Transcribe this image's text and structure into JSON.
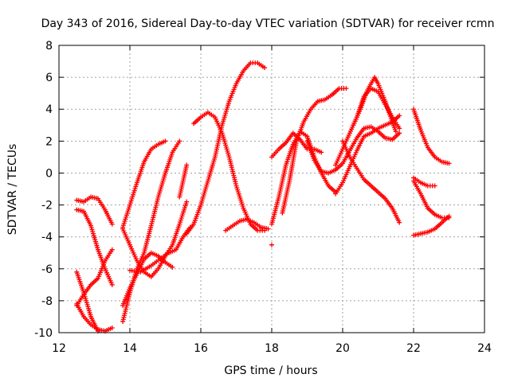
{
  "chart_data": {
    "type": "scatter",
    "title": "Day 343 of 2016, Sidereal Day-to-day VTEC variation (SDTVAR) for receiver rcmn",
    "xlabel": "GPS time / hours",
    "ylabel": "SDTVAR / TECUs",
    "xlim": [
      12,
      24
    ],
    "ylim": [
      -10,
      8
    ],
    "xticks": [
      "12",
      "14",
      "16",
      "18",
      "20",
      "22",
      "24"
    ],
    "yticks": [
      "-10",
      "-8",
      "-6",
      "-4",
      "-2",
      "0",
      "2",
      "4",
      "6",
      "8"
    ],
    "grid": true,
    "marker": "+",
    "color": "#ff0000",
    "tracks": [
      [
        [
          12.5,
          -1.7
        ],
        [
          12.7,
          -1.8
        ],
        [
          12.9,
          -1.5
        ],
        [
          13.1,
          -1.6
        ],
        [
          13.3,
          -2.3
        ],
        [
          13.5,
          -3.2
        ]
      ],
      [
        [
          12.5,
          -2.3
        ],
        [
          12.7,
          -2.4
        ],
        [
          12.9,
          -3.3
        ],
        [
          13.1,
          -4.8
        ],
        [
          13.3,
          -6.0
        ],
        [
          13.5,
          -7.0
        ]
      ],
      [
        [
          12.5,
          -8.3
        ],
        [
          12.7,
          -7.6
        ],
        [
          12.9,
          -7.0
        ],
        [
          13.1,
          -6.6
        ],
        [
          13.3,
          -5.5
        ],
        [
          13.5,
          -4.8
        ]
      ],
      [
        [
          12.5,
          -6.2
        ],
        [
          12.7,
          -7.5
        ],
        [
          12.9,
          -9.0
        ],
        [
          13.1,
          -9.9
        ]
      ],
      [
        [
          12.5,
          -8.2
        ],
        [
          12.7,
          -9.0
        ],
        [
          12.9,
          -9.5
        ],
        [
          13.1,
          -9.8
        ],
        [
          13.3,
          -9.9
        ],
        [
          13.5,
          -9.7
        ]
      ],
      [
        [
          13.8,
          -9.3
        ],
        [
          14.0,
          -7.5
        ],
        [
          14.2,
          -6.0
        ],
        [
          14.4,
          -5.0
        ],
        [
          14.6,
          -3.3
        ],
        [
          14.8,
          -1.5
        ],
        [
          15.0,
          0.0
        ],
        [
          15.2,
          1.3
        ],
        [
          15.4,
          2.0
        ]
      ],
      [
        [
          13.8,
          -8.3
        ],
        [
          14.0,
          -7.2
        ],
        [
          14.2,
          -6.3
        ],
        [
          14.4,
          -5.4
        ],
        [
          14.6,
          -5.0
        ],
        [
          14.8,
          -5.2
        ],
        [
          15.0,
          -5.6
        ],
        [
          15.2,
          -5.9
        ]
      ],
      [
        [
          13.8,
          -3.4
        ],
        [
          14.0,
          -2.0
        ],
        [
          14.2,
          -0.6
        ],
        [
          14.4,
          0.7
        ],
        [
          14.6,
          1.5
        ],
        [
          14.8,
          1.8
        ],
        [
          15.0,
          2.0
        ]
      ],
      [
        [
          13.8,
          -3.5
        ],
        [
          14.0,
          -4.5
        ],
        [
          14.2,
          -5.5
        ],
        [
          14.4,
          -6.2
        ],
        [
          14.6,
          -6.5
        ],
        [
          14.8,
          -6.0
        ],
        [
          15.0,
          -5.2
        ],
        [
          15.2,
          -4.5
        ],
        [
          15.4,
          -3.2
        ],
        [
          15.6,
          -1.8
        ]
      ],
      [
        [
          14.0,
          -6.1
        ],
        [
          14.3,
          -6.2
        ],
        [
          14.6,
          -5.8
        ],
        [
          14.9,
          -5.3
        ],
        [
          15.1,
          -5.0
        ],
        [
          15.3,
          -4.8
        ],
        [
          15.5,
          -4.0
        ],
        [
          15.7,
          -3.4
        ]
      ],
      [
        [
          15.4,
          -1.5
        ],
        [
          15.5,
          -0.5
        ],
        [
          15.6,
          0.5
        ]
      ],
      [
        [
          15.6,
          -3.8
        ],
        [
          15.8,
          -3.2
        ],
        [
          16.0,
          -2.0
        ],
        [
          16.2,
          -0.5
        ],
        [
          16.4,
          1.0
        ],
        [
          16.6,
          3.0
        ],
        [
          16.8,
          4.5
        ],
        [
          17.0,
          5.6
        ],
        [
          17.2,
          6.4
        ],
        [
          17.4,
          6.9
        ],
        [
          17.6,
          6.9
        ],
        [
          17.8,
          6.6
        ]
      ],
      [
        [
          15.8,
          3.1
        ],
        [
          16.0,
          3.5
        ],
        [
          16.2,
          3.8
        ],
        [
          16.4,
          3.5
        ],
        [
          16.6,
          2.5
        ],
        [
          16.8,
          1.0
        ],
        [
          17.0,
          -0.8
        ],
        [
          17.2,
          -2.2
        ],
        [
          17.4,
          -3.2
        ],
        [
          17.6,
          -3.6
        ],
        [
          17.8,
          -3.6
        ]
      ],
      [
        [
          16.7,
          -3.6
        ],
        [
          16.9,
          -3.3
        ],
        [
          17.1,
          -3.0
        ],
        [
          17.3,
          -2.9
        ],
        [
          17.5,
          -3.1
        ],
        [
          17.7,
          -3.4
        ],
        [
          17.9,
          -3.5
        ]
      ],
      [
        [
          18.0,
          -4.5
        ]
      ],
      [
        [
          18.0,
          -3.2
        ],
        [
          18.2,
          -1.5
        ],
        [
          18.4,
          0.5
        ],
        [
          18.6,
          1.8
        ],
        [
          18.8,
          2.6
        ],
        [
          19.0,
          2.3
        ],
        [
          19.2,
          1.0
        ],
        [
          19.4,
          0.0
        ],
        [
          19.6,
          -0.8
        ],
        [
          19.8,
          -1.2
        ]
      ],
      [
        [
          18.0,
          1.0
        ],
        [
          18.2,
          1.5
        ],
        [
          18.4,
          1.9
        ],
        [
          18.6,
          2.5
        ],
        [
          18.8,
          2.1
        ],
        [
          19.0,
          1.5
        ],
        [
          19.2,
          1.5
        ],
        [
          19.4,
          1.3
        ]
      ],
      [
        [
          18.3,
          -2.5
        ],
        [
          18.5,
          -0.5
        ],
        [
          18.7,
          2.0
        ],
        [
          18.9,
          3.2
        ],
        [
          19.1,
          4.0
        ],
        [
          19.3,
          4.5
        ],
        [
          19.5,
          4.6
        ],
        [
          19.7,
          4.9
        ],
        [
          19.9,
          5.3
        ],
        [
          20.1,
          5.3
        ]
      ],
      [
        [
          19.0,
          2.0
        ],
        [
          19.2,
          0.8
        ],
        [
          19.4,
          0.1
        ],
        [
          19.6,
          0.0
        ],
        [
          19.8,
          0.2
        ],
        [
          20.0,
          0.6
        ],
        [
          20.2,
          1.4
        ],
        [
          20.4,
          2.2
        ],
        [
          20.6,
          2.8
        ],
        [
          20.8,
          2.9
        ],
        [
          21.0,
          2.6
        ],
        [
          21.2,
          2.2
        ],
        [
          21.4,
          2.1
        ],
        [
          21.6,
          2.5
        ]
      ],
      [
        [
          19.8,
          0.5
        ],
        [
          20.0,
          1.5
        ],
        [
          20.2,
          2.5
        ],
        [
          20.4,
          3.5
        ],
        [
          20.6,
          4.8
        ],
        [
          20.8,
          5.3
        ],
        [
          21.0,
          5.1
        ],
        [
          21.2,
          4.3
        ],
        [
          21.4,
          3.5
        ],
        [
          21.6,
          2.8
        ]
      ],
      [
        [
          19.8,
          -1.3
        ],
        [
          20.0,
          -0.6
        ],
        [
          20.2,
          0.4
        ],
        [
          20.4,
          1.4
        ],
        [
          20.6,
          2.3
        ],
        [
          20.8,
          2.5
        ],
        [
          21.0,
          2.8
        ],
        [
          21.2,
          3.0
        ],
        [
          21.4,
          3.2
        ],
        [
          21.6,
          3.6
        ]
      ],
      [
        [
          20.0,
          2.0
        ],
        [
          20.2,
          1.0
        ],
        [
          20.4,
          0.3
        ],
        [
          20.6,
          -0.4
        ],
        [
          20.8,
          -0.8
        ],
        [
          21.0,
          -1.2
        ],
        [
          21.2,
          -1.6
        ],
        [
          21.4,
          -2.2
        ],
        [
          21.6,
          -3.1
        ]
      ],
      [
        [
          20.3,
          3.0
        ],
        [
          20.5,
          4.0
        ],
        [
          20.7,
          5.2
        ],
        [
          20.9,
          6.0
        ],
        [
          21.0,
          5.6
        ],
        [
          21.2,
          4.5
        ],
        [
          21.4,
          3.2
        ],
        [
          21.5,
          2.6
        ]
      ],
      [
        [
          22.0,
          4.0
        ],
        [
          22.2,
          2.7
        ],
        [
          22.4,
          1.6
        ],
        [
          22.6,
          1.0
        ],
        [
          22.8,
          0.7
        ],
        [
          23.0,
          0.6
        ]
      ],
      [
        [
          22.0,
          -0.3
        ],
        [
          22.2,
          -0.6
        ],
        [
          22.4,
          -0.8
        ],
        [
          22.6,
          -0.8
        ]
      ],
      [
        [
          22.0,
          -3.9
        ],
        [
          22.2,
          -3.8
        ],
        [
          22.4,
          -3.7
        ],
        [
          22.6,
          -3.5
        ],
        [
          22.8,
          -3.1
        ],
        [
          23.0,
          -2.7
        ]
      ],
      [
        [
          22.0,
          -0.5
        ],
        [
          22.2,
          -1.3
        ],
        [
          22.4,
          -2.2
        ],
        [
          22.6,
          -2.6
        ],
        [
          22.8,
          -2.8
        ],
        [
          23.0,
          -2.8
        ]
      ]
    ]
  }
}
